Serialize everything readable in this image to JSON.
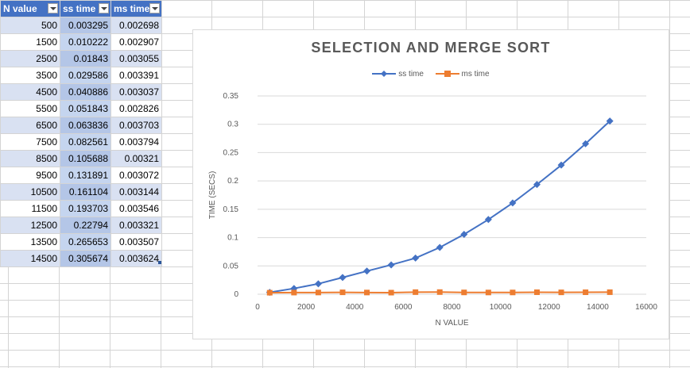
{
  "sheet": {
    "headers": [
      "N value",
      "ss time",
      "ms time"
    ],
    "rows": [
      [
        "500",
        "0.003295",
        "0.002698"
      ],
      [
        "1500",
        "0.010222",
        "0.002907"
      ],
      [
        "2500",
        "0.01843",
        "0.003055"
      ],
      [
        "3500",
        "0.029586",
        "0.003391"
      ],
      [
        "4500",
        "0.040886",
        "0.003037"
      ],
      [
        "5500",
        "0.051843",
        "0.002826"
      ],
      [
        "6500",
        "0.063836",
        "0.003703"
      ],
      [
        "7500",
        "0.082561",
        "0.003794"
      ],
      [
        "8500",
        "0.105688",
        "0.00321"
      ],
      [
        "9500",
        "0.131891",
        "0.003072"
      ],
      [
        "10500",
        "0.161104",
        "0.003144"
      ],
      [
        "11500",
        "0.193703",
        "0.003546"
      ],
      [
        "12500",
        "0.22794",
        "0.003321"
      ],
      [
        "13500",
        "0.265653",
        "0.003507"
      ],
      [
        "14500",
        "0.305674",
        "0.003624"
      ]
    ]
  },
  "chart_data": {
    "type": "line",
    "title": "SELECTION AND MERGE SORT",
    "xlabel": "N VALUE",
    "ylabel": "TIME (SECS)",
    "xlim": [
      0,
      16000
    ],
    "ylim": [
      0,
      0.35
    ],
    "xticks": [
      "0",
      "2000",
      "4000",
      "6000",
      "8000",
      "10000",
      "12000",
      "14000",
      "16000"
    ],
    "yticks": [
      "0",
      "0.05",
      "0.1",
      "0.15",
      "0.2",
      "0.25",
      "0.3",
      "0.35"
    ],
    "grid": "horizontal",
    "legend": "top",
    "x": [
      500,
      1500,
      2500,
      3500,
      4500,
      5500,
      6500,
      7500,
      8500,
      9500,
      10500,
      11500,
      12500,
      13500,
      14500
    ],
    "series": [
      {
        "name": "ss time",
        "color": "#4472c4",
        "marker": "diamond",
        "values": [
          0.003295,
          0.010222,
          0.01843,
          0.029586,
          0.040886,
          0.051843,
          0.063836,
          0.082561,
          0.105688,
          0.131891,
          0.161104,
          0.193703,
          0.22794,
          0.265653,
          0.305674
        ]
      },
      {
        "name": "ms time",
        "color": "#ed7d31",
        "marker": "square",
        "values": [
          0.002698,
          0.002907,
          0.003055,
          0.003391,
          0.003037,
          0.002826,
          0.003703,
          0.003794,
          0.00321,
          0.003072,
          0.003144,
          0.003546,
          0.003321,
          0.003507,
          0.003624
        ]
      }
    ]
  }
}
